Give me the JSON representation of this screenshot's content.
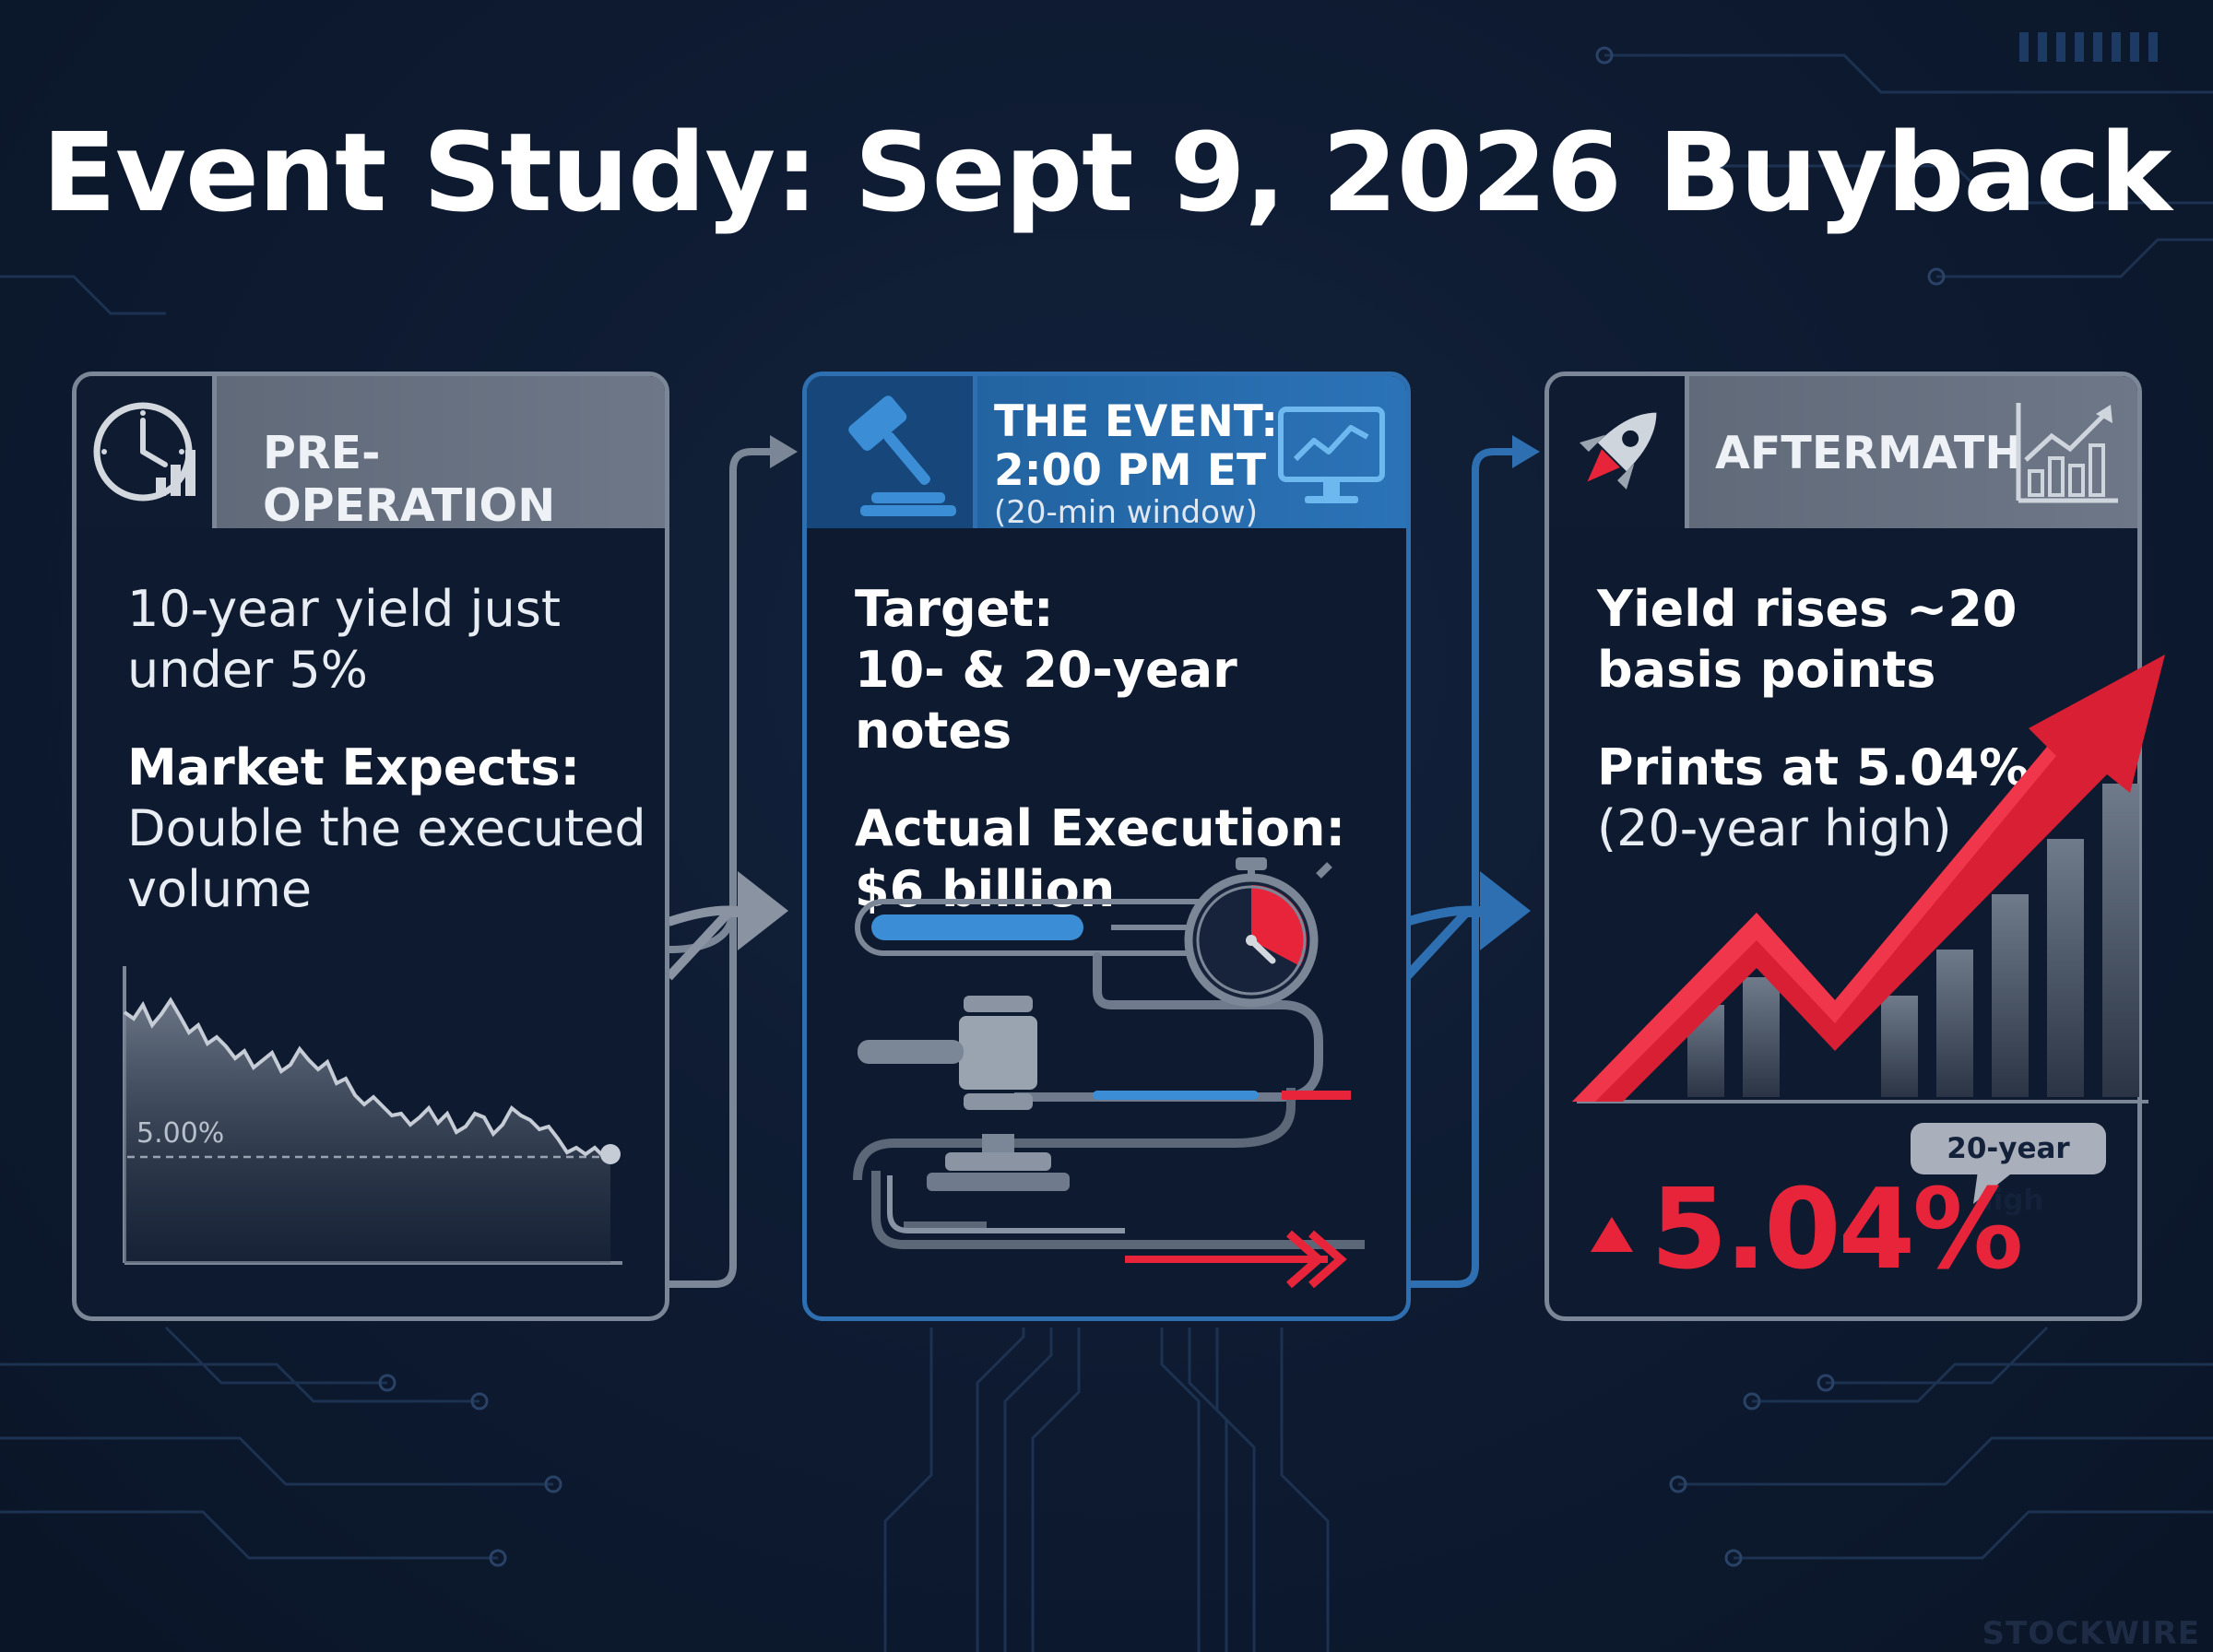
{
  "title": "Event Study: Sept 9, 2026 Buyback",
  "panels": {
    "pre": {
      "header": "PRE-OPERATION",
      "line1": "10-year yield just",
      "line2": "under 5%",
      "expects_label": "Market Expects:",
      "expects_line1": "Double the executed",
      "expects_line2": "volume",
      "chart_ref_label": "5.00%"
    },
    "event": {
      "header_line1": "THE EVENT:",
      "header_line2": "2:00 PM ET",
      "header_line3": "(20-min window)",
      "target_label": "Target:",
      "target_value": "10- & 20-year notes",
      "execution_label": "Actual Execution:",
      "execution_value": "$6 billion"
    },
    "after": {
      "header": "AFTERMATH",
      "line1": "Yield rises ~20",
      "line2": "basis points",
      "prints_label": "Prints at 5.04%",
      "prints_note": "(20-year high)",
      "callout": "20-year high",
      "big_value": "5.04%"
    }
  },
  "watermark": "STOCKWIRE",
  "colors": {
    "background": "#0d1a30",
    "gray_border": "#7b8696",
    "blue_accent": "#2d6fb0",
    "red_accent": "#e8243b"
  },
  "icons": {
    "pre": "clock-bars-icon",
    "event": "gavel-icon",
    "event_right": "monitor-chart-icon",
    "after": "rocket-icon",
    "after_right": "rising-bars-icon"
  }
}
